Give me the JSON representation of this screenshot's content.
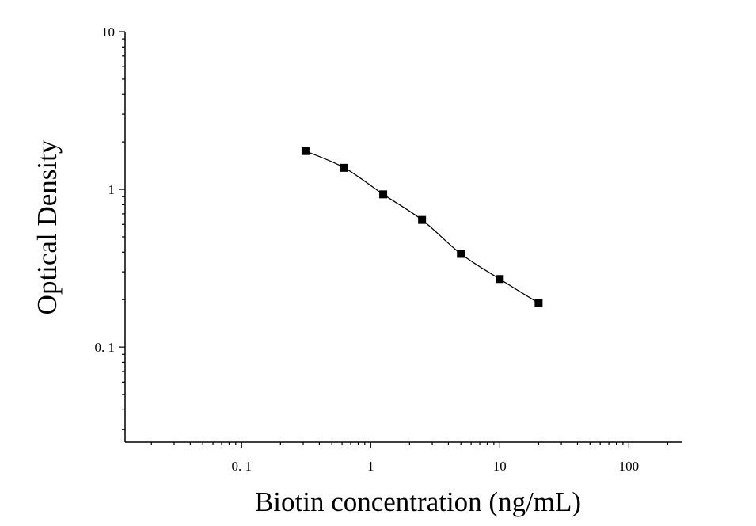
{
  "chart_data": {
    "type": "scatter",
    "title": "",
    "xlabel": "Biotin concentration (ng/mL)",
    "ylabel": "Optical Density",
    "x_scale": "log",
    "y_scale": "log",
    "xlim": [
      0.0125,
      260
    ],
    "ylim": [
      0.025,
      10
    ],
    "x_ticks": [
      0.1,
      1,
      10,
      100
    ],
    "x_tick_labels": [
      "0. 1",
      "1",
      "10",
      "100"
    ],
    "y_ticks": [
      0.1,
      1,
      10
    ],
    "y_tick_labels": [
      "0. 1",
      "1",
      "10"
    ],
    "grid": false,
    "legend": "none",
    "series": [
      {
        "marker": "square",
        "color": "#000000",
        "fit_curve": true,
        "x": [
          0.3125,
          0.625,
          1.25,
          2.5,
          5,
          10,
          20
        ],
        "y": [
          1.75,
          1.37,
          0.93,
          0.64,
          0.39,
          0.27,
          0.19
        ]
      }
    ]
  }
}
